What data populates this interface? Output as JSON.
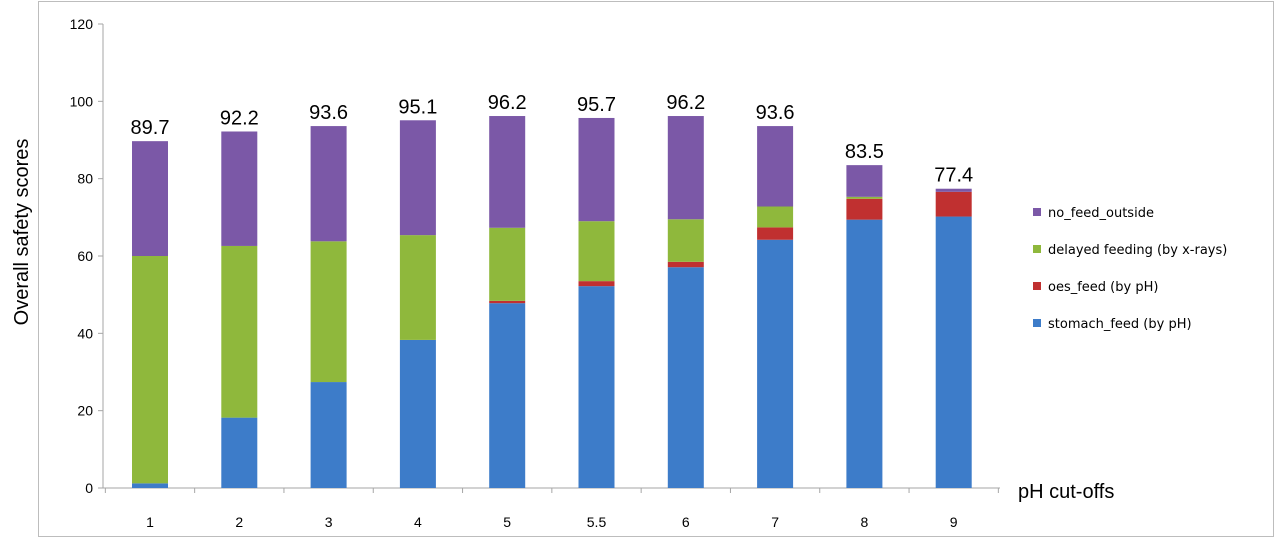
{
  "chart_data": {
    "type": "bar",
    "stacked": true,
    "title": "",
    "xlabel": "pH cut-offs",
    "ylabel": "Overall safety scores",
    "ylim": [
      0,
      120
    ],
    "yticks": [
      0,
      20,
      40,
      60,
      80,
      100,
      120
    ],
    "grid": false,
    "legend_position": "right",
    "categories": [
      "1",
      "2",
      "3",
      "4",
      "5",
      "5.5",
      "6",
      "7",
      "8",
      "9"
    ],
    "totals": [
      "89.7",
      "92.2",
      "93.6",
      "95.1",
      "96.2",
      "95.7",
      "96.2",
      "93.6",
      "83.5",
      "77.4"
    ],
    "series": [
      {
        "name": "stomach_feed (by pH)",
        "color": "#3d7cc9",
        "values": [
          1.2,
          18.2,
          27.4,
          38.3,
          47.8,
          52.2,
          57.1,
          64.2,
          69.4,
          70.2
        ]
      },
      {
        "name": "oes_feed (by pH)",
        "color": "#c03030",
        "values": [
          0,
          0,
          0,
          0,
          0.6,
          1.3,
          1.4,
          3.2,
          5.4,
          6.4
        ]
      },
      {
        "name": "delayed feeding (by x-rays)",
        "color": "#8fb83c",
        "values": [
          58.8,
          44.4,
          36.4,
          27.1,
          18.9,
          15.5,
          11.0,
          5.4,
          0.5,
          0
        ]
      },
      {
        "name": "no_feed_outside",
        "color": "#7b58a7",
        "values": [
          29.7,
          29.6,
          29.8,
          29.7,
          28.9,
          26.7,
          26.7,
          20.8,
          8.2,
          0.8
        ]
      }
    ],
    "legend_order": [
      "no_feed_outside",
      "delayed feeding (by x-rays)",
      "oes_feed (by pH)",
      "stomach_feed (by pH)"
    ]
  }
}
